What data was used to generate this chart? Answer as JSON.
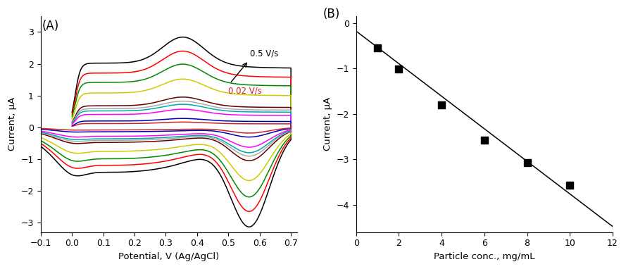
{
  "panel_A": {
    "label": "(A)",
    "xlabel": "Potential, V (Ag/AgCl)",
    "ylabel": "Current, μA",
    "xlim": [
      -0.1,
      0.72
    ],
    "ylim": [
      -3.3,
      3.5
    ],
    "xticks": [
      -0.1,
      0.0,
      0.1,
      0.2,
      0.3,
      0.4,
      0.5,
      0.6,
      0.7
    ],
    "yticks": [
      -3,
      -2,
      -1,
      0,
      1,
      2,
      3
    ],
    "annotation_text_high": "0.5 V/s",
    "annotation_text_low": "0.02 V/s",
    "colors": [
      "#000000",
      "#ff0000",
      "#008800",
      "#cccc00",
      "#660000",
      "#aaaaaa",
      "#00aaaa",
      "#ff00ff",
      "#0000bb",
      "#cc2222"
    ],
    "scales": [
      1.0,
      0.845,
      0.7,
      0.535,
      0.335,
      0.29,
      0.255,
      0.2,
      0.098,
      0.058
    ]
  },
  "panel_B": {
    "label": "(B)",
    "xlabel": "Particle conc., mg/mL",
    "ylabel": "Current, μA",
    "xlim": [
      0,
      12
    ],
    "ylim": [
      -4.6,
      0.15
    ],
    "xticks": [
      0,
      2,
      4,
      6,
      8,
      10,
      12
    ],
    "yticks": [
      0,
      -1,
      -2,
      -3,
      -4
    ],
    "scatter_x": [
      1,
      2,
      4,
      6,
      8,
      10
    ],
    "scatter_y": [
      -0.55,
      -1.02,
      -1.8,
      -2.58,
      -3.08,
      -3.57
    ],
    "line_x0": 0,
    "line_x1": 12,
    "line_slope": -0.358,
    "line_intercept": -0.18
  }
}
